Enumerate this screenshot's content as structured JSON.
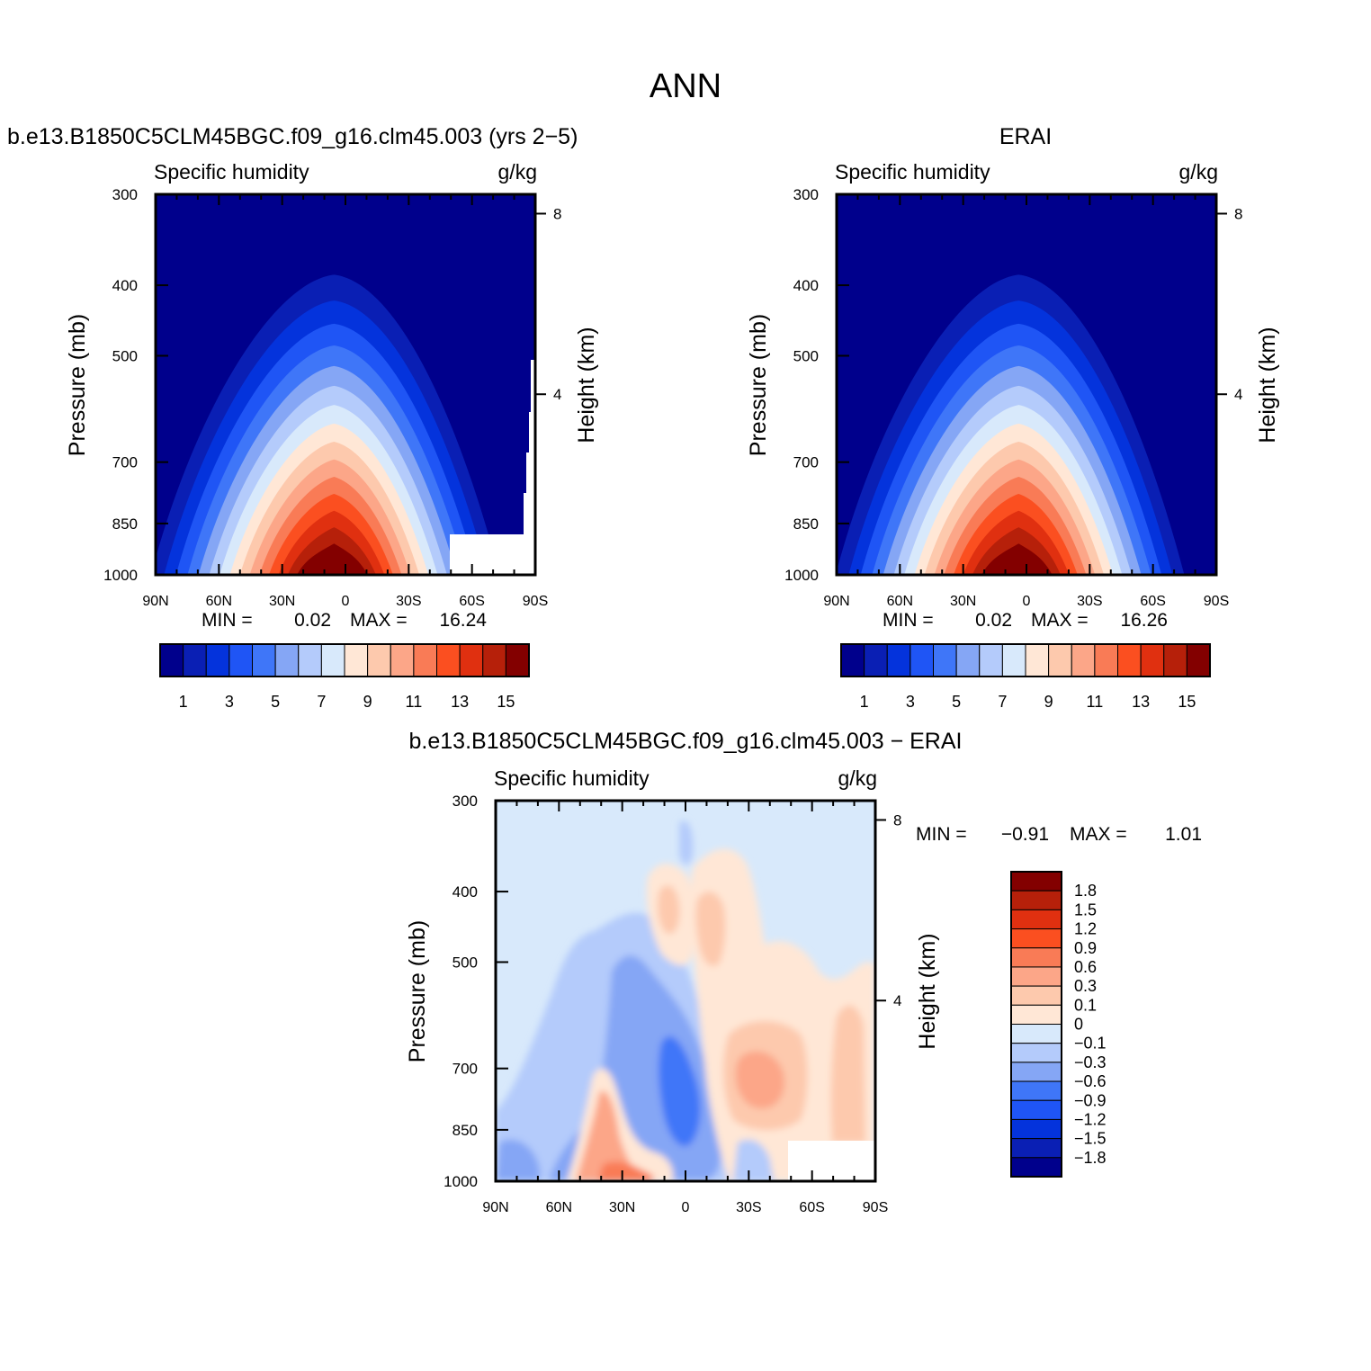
{
  "figure": {
    "title": "ANN"
  },
  "colors": {
    "abs_scale": [
      "#00008c",
      "#0a1fb4",
      "#0433dc",
      "#1f55f5",
      "#3f76f8",
      "#85a6f5",
      "#b4cbfb",
      "#d8e9fb",
      "#ffe7d6",
      "#fdc9ad",
      "#fca688",
      "#f97b56",
      "#fb4f20",
      "#e03010",
      "#b6200a",
      "#830000"
    ],
    "diff_scale": [
      "#00008c",
      "#0a1fb4",
      "#0433dc",
      "#1f55f5",
      "#3f76f8",
      "#85a6f5",
      "#b4cbfb",
      "#d8e9fb",
      "#ffe7d6",
      "#fdc9ad",
      "#fca688",
      "#f97b56",
      "#fb4f20",
      "#e03010",
      "#b6200a",
      "#830000"
    ]
  },
  "chart_data": [
    {
      "type": "heatmap",
      "title": "b.e13.B1850C5CLM45BGC.f09_g16.clm45.003 (yrs 2−5)",
      "variable": "Specific humidity",
      "units": "g/kg",
      "ylabel": "Pressure (mb)",
      "y2label": "Height (km)",
      "x_ticks": [
        "90N",
        "60N",
        "30N",
        "0",
        "30S",
        "60S",
        "90S"
      ],
      "y_ticks": [
        "300",
        "400",
        "500",
        "700",
        "850",
        "1000"
      ],
      "y2_ticks": [
        "8",
        "4"
      ],
      "min_label": "MIN =",
      "min_value": "0.02",
      "max_label": "MAX =",
      "max_value": "16.24",
      "colorbar_labels": [
        "1",
        "3",
        "5",
        "7",
        "9",
        "11",
        "13",
        "15"
      ],
      "peak_latitude": 0,
      "peak_value": 16.24,
      "y_reversed": true
    },
    {
      "type": "heatmap",
      "title": "ERAI",
      "variable": "Specific humidity",
      "units": "g/kg",
      "ylabel": "Pressure (mb)",
      "y2label": "Height (km)",
      "x_ticks": [
        "90N",
        "60N",
        "30N",
        "0",
        "30S",
        "60S",
        "90S"
      ],
      "y_ticks": [
        "300",
        "400",
        "500",
        "700",
        "850",
        "1000"
      ],
      "y2_ticks": [
        "8",
        "4"
      ],
      "min_label": "MIN =",
      "min_value": "0.02",
      "max_label": "MAX =",
      "max_value": "16.26",
      "colorbar_labels": [
        "1",
        "3",
        "5",
        "7",
        "9",
        "11",
        "13",
        "15"
      ],
      "peak_latitude": 0,
      "peak_value": 16.26,
      "y_reversed": true
    },
    {
      "type": "heatmap",
      "title": "b.e13.B1850C5CLM45BGC.f09_g16.clm45.003 − ERAI",
      "variable": "Specific humidity",
      "units": "g/kg",
      "ylabel": "Pressure (mb)",
      "y2label": "Height (km)",
      "x_ticks": [
        "90N",
        "60N",
        "30N",
        "0",
        "30S",
        "60S",
        "90S"
      ],
      "y_ticks": [
        "300",
        "400",
        "500",
        "700",
        "850",
        "1000"
      ],
      "y2_ticks": [
        "8",
        "4"
      ],
      "min_label": "MIN =",
      "min_value": "−0.91",
      "max_label": "MAX =",
      "max_value": "1.01",
      "colorbar_labels": [
        "1.8",
        "1.5",
        "1.2",
        "0.9",
        "0.6",
        "0.3",
        "0.1",
        "0",
        "−0.1",
        "−0.3",
        "−0.6",
        "−0.9",
        "−1.2",
        "−1.5",
        "−1.8"
      ],
      "y_reversed": true
    }
  ]
}
